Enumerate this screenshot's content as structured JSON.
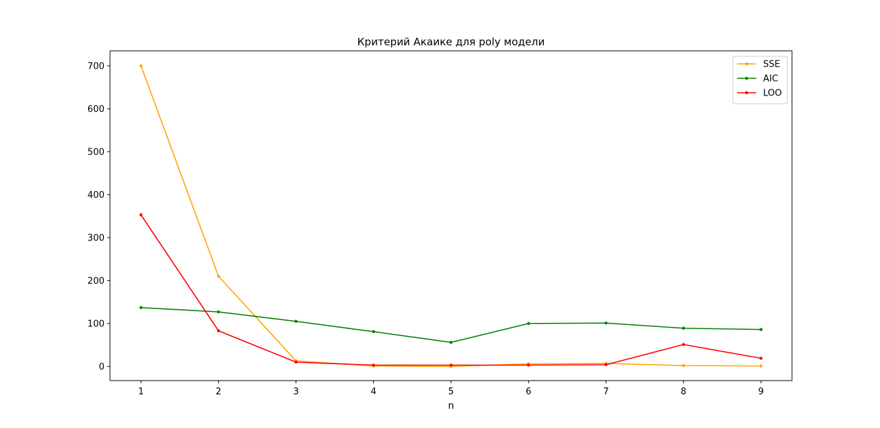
{
  "chart_data": {
    "type": "line",
    "title": "Критерий Акаике для poly модели",
    "xlabel": "n",
    "ylabel": "",
    "x": [
      1,
      2,
      3,
      4,
      5,
      6,
      7,
      8,
      9
    ],
    "xticks": [
      1,
      2,
      3,
      4,
      5,
      6,
      7,
      8,
      9
    ],
    "yticks": [
      0,
      100,
      200,
      300,
      400,
      500,
      600,
      700
    ],
    "xlim": [
      0.6,
      9.4
    ],
    "ylim": [
      -33,
      735
    ],
    "grid": false,
    "legend_position": "top-right",
    "series": [
      {
        "name": "SSE",
        "color": "#ffa500",
        "values": [
          700,
          210,
          13,
          1,
          0,
          6,
          7,
          2,
          1
        ]
      },
      {
        "name": "AIC",
        "color": "#008000",
        "values": [
          137,
          127,
          105,
          81,
          56,
          100,
          101,
          89,
          86
        ]
      },
      {
        "name": "LOO",
        "color": "#ff0000",
        "values": [
          353,
          83,
          10,
          3,
          3,
          3,
          4,
          51,
          19
        ]
      }
    ]
  }
}
